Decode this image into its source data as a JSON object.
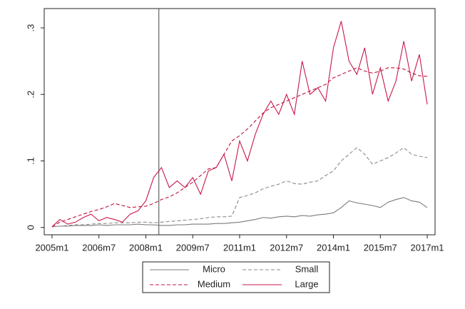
{
  "chart_data": {
    "type": "line",
    "x": [
      540,
      543,
      546,
      549,
      552,
      555,
      558,
      561,
      564,
      567,
      570,
      573,
      576,
      579,
      582,
      585,
      588,
      591,
      594,
      597,
      600,
      603,
      606,
      609,
      612,
      615,
      618,
      621,
      624,
      627,
      630,
      633,
      636,
      639,
      642,
      645,
      648,
      651,
      654,
      657,
      660,
      663,
      666,
      669,
      672,
      675,
      678,
      681,
      684
    ],
    "xlim": [
      537,
      687
    ],
    "xticks": [
      {
        "value": 540,
        "label": "2005m1"
      },
      {
        "value": 558,
        "label": "2006m7"
      },
      {
        "value": 576,
        "label": "2008m1"
      },
      {
        "value": 594,
        "label": "2009m7"
      },
      {
        "value": 612,
        "label": "2011m1"
      },
      {
        "value": 630,
        "label": "2012m7"
      },
      {
        "value": 648,
        "label": "2014m1"
      },
      {
        "value": 666,
        "label": "2015m7"
      },
      {
        "value": 684,
        "label": "2017m1"
      }
    ],
    "ylim": [
      -0.011,
      0.329
    ],
    "yticks": [
      0,
      {
        "value": 0.1,
        "label": ".1"
      },
      {
        "value": 0.2,
        "label": ".2"
      },
      {
        "value": 0.3,
        "label": ".3"
      }
    ],
    "xline": 581,
    "grid": false,
    "series": [
      {
        "name": "Micro",
        "color": "#7a7a7a",
        "dash": false,
        "values": [
          0.001,
          0.002,
          0.002,
          0.003,
          0.003,
          0.003,
          0.004,
          0.003,
          0.004,
          0.004,
          0.004,
          0.005,
          0.004,
          0.004,
          0.003,
          0.003,
          0.004,
          0.004,
          0.005,
          0.005,
          0.005,
          0.006,
          0.006,
          0.007,
          0.008,
          0.01,
          0.012,
          0.015,
          0.014,
          0.016,
          0.017,
          0.016,
          0.018,
          0.017,
          0.019,
          0.02,
          0.022,
          0.03,
          0.04,
          0.037,
          0.035,
          0.033,
          0.03,
          0.038,
          0.042,
          0.045,
          0.04,
          0.038,
          0.03
        ]
      },
      {
        "name": "Small",
        "color": "#8a8a8a",
        "dash": true,
        "values": [
          0.001,
          0.002,
          0.003,
          0.004,
          0.004,
          0.005,
          0.006,
          0.006,
          0.007,
          0.007,
          0.007,
          0.008,
          0.008,
          0.007,
          0.008,
          0.009,
          0.01,
          0.011,
          0.012,
          0.013,
          0.015,
          0.016,
          0.016,
          0.017,
          0.045,
          0.048,
          0.052,
          0.058,
          0.062,
          0.065,
          0.07,
          0.066,
          0.065,
          0.068,
          0.07,
          0.078,
          0.085,
          0.1,
          0.11,
          0.12,
          0.11,
          0.095,
          0.1,
          0.105,
          0.112,
          0.12,
          0.11,
          0.107,
          0.105
        ]
      },
      {
        "name": "Medium",
        "color": "#c0143c",
        "dash": true,
        "values": [
          0.001,
          0.008,
          0.012,
          0.016,
          0.02,
          0.024,
          0.027,
          0.031,
          0.036,
          0.033,
          0.03,
          0.031,
          0.032,
          0.036,
          0.042,
          0.046,
          0.052,
          0.06,
          0.068,
          0.078,
          0.088,
          0.09,
          0.11,
          0.13,
          0.138,
          0.148,
          0.16,
          0.172,
          0.18,
          0.185,
          0.19,
          0.195,
          0.2,
          0.205,
          0.21,
          0.215,
          0.225,
          0.23,
          0.235,
          0.24,
          0.235,
          0.232,
          0.235,
          0.24,
          0.24,
          0.238,
          0.232,
          0.228,
          0.227
        ]
      },
      {
        "name": "Large",
        "color": "#c8174a",
        "dash": false,
        "values": [
          0.001,
          0.012,
          0.005,
          0.008,
          0.015,
          0.02,
          0.01,
          0.015,
          0.012,
          0.008,
          0.02,
          0.025,
          0.04,
          0.075,
          0.09,
          0.06,
          0.07,
          0.06,
          0.075,
          0.05,
          0.085,
          0.09,
          0.11,
          0.07,
          0.13,
          0.1,
          0.14,
          0.17,
          0.19,
          0.17,
          0.2,
          0.17,
          0.25,
          0.2,
          0.21,
          0.19,
          0.27,
          0.31,
          0.25,
          0.23,
          0.27,
          0.2,
          0.24,
          0.19,
          0.22,
          0.28,
          0.22,
          0.26,
          0.185
        ]
      }
    ]
  }
}
